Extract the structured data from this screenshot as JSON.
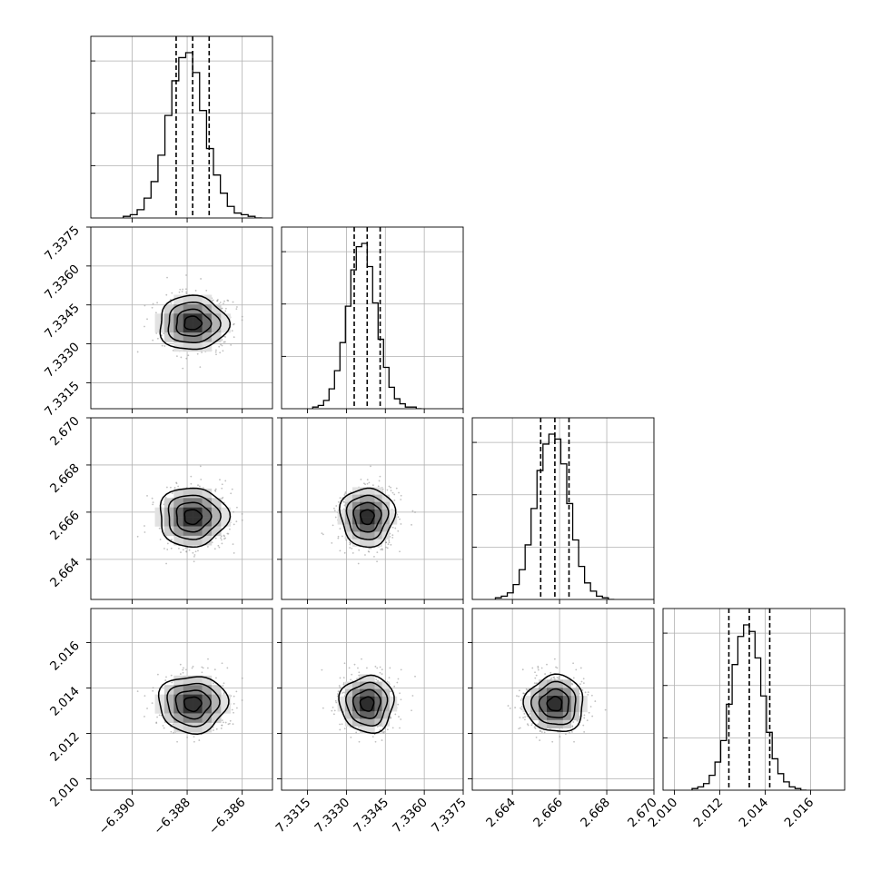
{
  "chart_data": {
    "type": "corner",
    "description_of_params": "4-parameter posterior corner plot",
    "params": [
      {
        "mean": -6.3878,
        "sigma": 0.0006,
        "range": [
          -6.3915,
          -6.3849
        ],
        "ticks": [
          -6.39,
          -6.388,
          -6.386
        ],
        "tick_labels": [
          "−6.390",
          "−6.388",
          "−6.386"
        ],
        "quantiles": [
          -6.3884,
          -6.3878,
          -6.3872
        ]
      },
      {
        "mean": 7.3338,
        "sigma": 0.0005,
        "range": [
          7.3305,
          7.3375
        ],
        "ticks": [
          7.3315,
          7.333,
          7.3345,
          7.336,
          7.3375
        ],
        "tick_labels": [
          "7.3315",
          "7.3330",
          "7.3345",
          "7.3360",
          "7.3375"
        ],
        "quantiles": [
          7.3333,
          7.3338,
          7.3343
        ]
      },
      {
        "mean": 2.6658,
        "sigma": 0.0006,
        "range": [
          2.6623,
          2.67
        ],
        "ticks": [
          2.664,
          2.666,
          2.668,
          2.67
        ],
        "tick_labels": [
          "2.664",
          "2.666",
          "2.668",
          "2.670"
        ],
        "quantiles": [
          2.6652,
          2.6658,
          2.6664
        ]
      },
      {
        "mean": 2.0133,
        "sigma": 0.0006,
        "range": [
          2.0095,
          2.0175
        ],
        "ticks": [
          2.01,
          2.012,
          2.014,
          2.016
        ],
        "tick_labels": [
          "2.010",
          "2.012",
          "2.014",
          "2.016"
        ],
        "quantiles": [
          2.0124,
          2.0133,
          2.0142
        ]
      }
    ],
    "histograms": [
      {
        "bins": 20,
        "values": [
          1,
          2,
          5,
          12,
          22,
          38,
          62,
          83,
          97,
          100,
          88,
          65,
          42,
          26,
          15,
          7,
          3,
          2,
          1,
          0
        ]
      },
      {
        "bins": 20,
        "values": [
          1,
          2,
          5,
          12,
          23,
          40,
          62,
          84,
          98,
          100,
          86,
          64,
          42,
          25,
          13,
          6,
          3,
          1,
          1,
          0
        ]
      },
      {
        "bins": 20,
        "values": [
          1,
          2,
          4,
          9,
          18,
          33,
          55,
          78,
          94,
          100,
          97,
          82,
          58,
          36,
          20,
          10,
          5,
          2,
          1,
          0
        ]
      },
      {
        "bins": 20,
        "values": [
          1,
          2,
          4,
          9,
          17,
          30,
          52,
          76,
          93,
          100,
          96,
          80,
          57,
          35,
          19,
          10,
          5,
          2,
          1,
          0
        ]
      }
    ],
    "hist_grid_fractions": [
      0.3,
      0.6,
      0.9
    ],
    "correlation": 0.0,
    "contour_levels_sigma": [
      0.5,
      1.0,
      1.5,
      2.0
    ],
    "shading": {
      "grid": 14,
      "min_fraction": 0.08
    },
    "scatter": {
      "n_points": 700,
      "seed": 17
    },
    "style": {
      "grid": true,
      "axis_color": "#000000",
      "grid_color": "#b0b0b0",
      "scatter_color": "#8c8c8c"
    }
  }
}
